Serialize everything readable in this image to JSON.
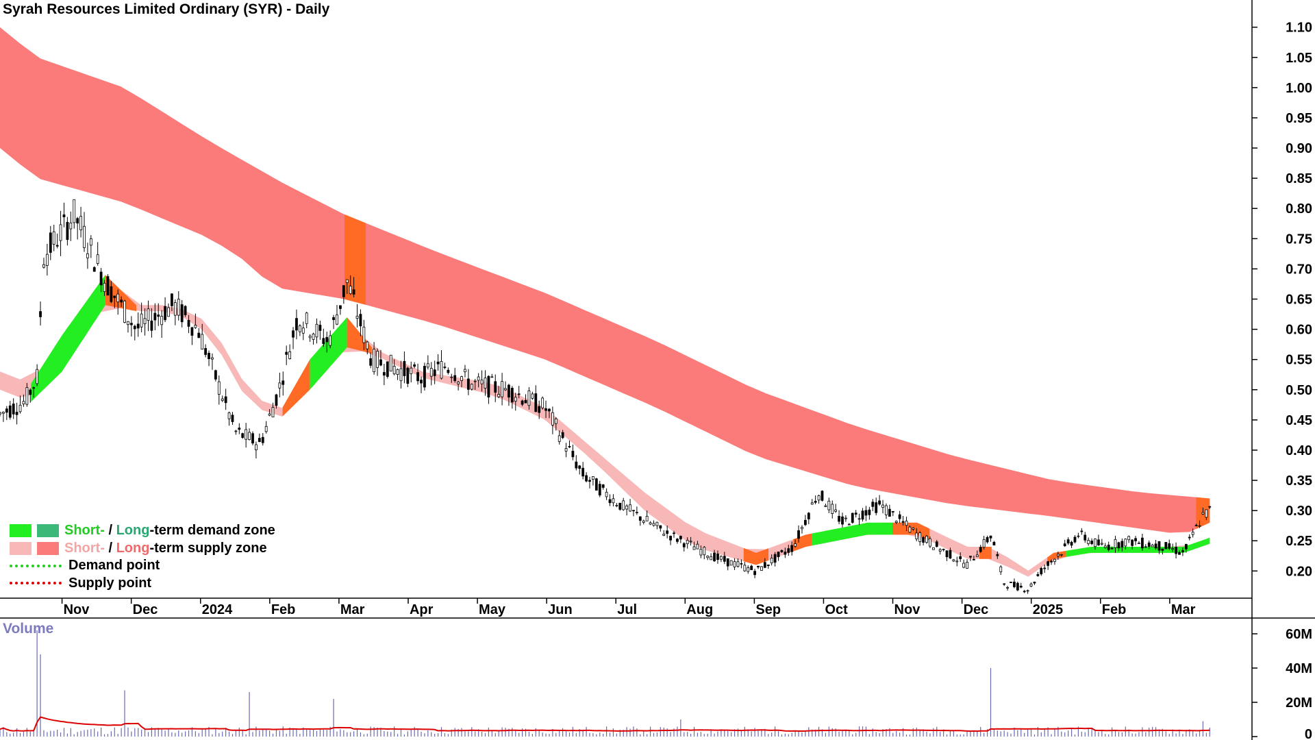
{
  "title": "Syrah Resources Limited Ordinary (SYR) - Daily",
  "volume_label": "Volume",
  "legend": {
    "demand_short": "Short-",
    "demand_sep": " / ",
    "demand_long": "Long",
    "demand_rest": "-term demand zone",
    "supply_short": "Short-",
    "supply_sep": " / ",
    "supply_long": "Long",
    "supply_rest": "-term supply zone",
    "demand_point": "Demand point",
    "supply_point": "Supply point"
  },
  "colors": {
    "short_demand": "#22ee22",
    "long_demand": "#3cb878",
    "short_supply": "#f9b8b8",
    "long_supply": "#fb7a7a",
    "zone_overlap": "#ff6a24",
    "demand_point": "#22cc22",
    "supply_point": "#dd0000",
    "volume_bar": "#6a6ab0",
    "volume_ma": "#dd0000"
  },
  "chart_data": {
    "type": "candlestick",
    "price_axis": {
      "ticks": [
        "1.10",
        "1.05",
        "1.00",
        "0.95",
        "0.90",
        "0.85",
        "0.80",
        "0.75",
        "0.70",
        "0.65",
        "0.60",
        "0.55",
        "0.50",
        "0.45",
        "0.40",
        "0.35",
        "0.30",
        "0.25",
        "0.20"
      ],
      "range": [
        0.155,
        1.145
      ]
    },
    "volume_axis": {
      "ticks": [
        "60M",
        "40M",
        "20M",
        "0"
      ],
      "range": [
        0,
        68
      ]
    },
    "x_labels": [
      "Nov",
      "Dec",
      "2024",
      "Feb",
      "Mar",
      "Apr",
      "May",
      "Jun",
      "Jul",
      "Aug",
      "Sep",
      "Oct",
      "Nov",
      "Dec",
      "2025",
      "Feb",
      "Mar"
    ],
    "period": [
      "2023-10",
      "2025-03"
    ],
    "price_path": [
      [
        0,
        0.46
      ],
      [
        0.02,
        0.48
      ],
      [
        0.03,
        0.52
      ],
      [
        0.035,
        0.72
      ],
      [
        0.06,
        0.79
      ],
      [
        0.085,
        0.68
      ],
      [
        0.11,
        0.6
      ],
      [
        0.14,
        0.64
      ],
      [
        0.16,
        0.6
      ],
      [
        0.19,
        0.43
      ],
      [
        0.21,
        0.41
      ],
      [
        0.225,
        0.5
      ],
      [
        0.24,
        0.62
      ],
      [
        0.265,
        0.58
      ],
      [
        0.28,
        0.68
      ],
      [
        0.3,
        0.55
      ],
      [
        0.34,
        0.52
      ],
      [
        0.36,
        0.54
      ],
      [
        0.38,
        0.51
      ],
      [
        0.41,
        0.5
      ],
      [
        0.44,
        0.47
      ],
      [
        0.47,
        0.36
      ],
      [
        0.5,
        0.31
      ],
      [
        0.54,
        0.26
      ],
      [
        0.58,
        0.22
      ],
      [
        0.61,
        0.2
      ],
      [
        0.64,
        0.24
      ],
      [
        0.66,
        0.33
      ],
      [
        0.68,
        0.28
      ],
      [
        0.71,
        0.31
      ],
      [
        0.74,
        0.26
      ],
      [
        0.78,
        0.21
      ],
      [
        0.8,
        0.26
      ],
      [
        0.81,
        0.18
      ],
      [
        0.83,
        0.17
      ],
      [
        0.84,
        0.2
      ],
      [
        0.87,
        0.26
      ],
      [
        0.89,
        0.24
      ],
      [
        0.91,
        0.25
      ],
      [
        0.94,
        0.24
      ],
      [
        0.955,
        0.23
      ],
      [
        0.97,
        0.29
      ],
      [
        0.976,
        0.3
      ]
    ],
    "series": [
      {
        "name": "Long-term zone",
        "role": "long",
        "upper": [
          [
            0,
            1.1
          ],
          [
            0.03,
            1.05
          ],
          [
            0.1,
            1.0
          ],
          [
            0.17,
            0.91
          ],
          [
            0.23,
            0.84
          ],
          [
            0.278,
            0.79
          ],
          [
            0.35,
            0.73
          ],
          [
            0.44,
            0.66
          ],
          [
            0.53,
            0.58
          ],
          [
            0.61,
            0.5
          ],
          [
            0.69,
            0.44
          ],
          [
            0.77,
            0.39
          ],
          [
            0.85,
            0.35
          ],
          [
            0.92,
            0.33
          ],
          [
            0.976,
            0.32
          ]
        ],
        "lower": [
          [
            0,
            0.9
          ],
          [
            0.03,
            0.85
          ],
          [
            0.1,
            0.81
          ],
          [
            0.17,
            0.75
          ],
          [
            0.2,
            0.71
          ],
          [
            0.22,
            0.67
          ],
          [
            0.278,
            0.65
          ],
          [
            0.35,
            0.61
          ],
          [
            0.44,
            0.55
          ],
          [
            0.53,
            0.47
          ],
          [
            0.61,
            0.39
          ],
          [
            0.69,
            0.34
          ],
          [
            0.77,
            0.31
          ],
          [
            0.85,
            0.29
          ],
          [
            0.92,
            0.27
          ],
          [
            0.955,
            0.26
          ],
          [
            0.976,
            0.28
          ]
        ]
      },
      {
        "name": "Short-term zone",
        "role": "short",
        "upper": [
          [
            0,
            0.53
          ],
          [
            0.025,
            0.51
          ],
          [
            0.05,
            0.59
          ],
          [
            0.085,
            0.69
          ],
          [
            0.11,
            0.64
          ],
          [
            0.14,
            0.64
          ],
          [
            0.17,
            0.61
          ],
          [
            0.2,
            0.5
          ],
          [
            0.225,
            0.46
          ],
          [
            0.25,
            0.55
          ],
          [
            0.28,
            0.62
          ],
          [
            0.3,
            0.57
          ],
          [
            0.34,
            0.53
          ],
          [
            0.4,
            0.51
          ],
          [
            0.44,
            0.47
          ],
          [
            0.48,
            0.4
          ],
          [
            0.52,
            0.33
          ],
          [
            0.56,
            0.27
          ],
          [
            0.61,
            0.23
          ],
          [
            0.65,
            0.26
          ],
          [
            0.7,
            0.28
          ],
          [
            0.74,
            0.28
          ],
          [
            0.78,
            0.24
          ],
          [
            0.8,
            0.24
          ],
          [
            0.83,
            0.2
          ],
          [
            0.85,
            0.23
          ],
          [
            0.88,
            0.24
          ],
          [
            0.92,
            0.24
          ],
          [
            0.955,
            0.24
          ],
          [
            0.976,
            0.255
          ]
        ],
        "lower": [
          [
            0,
            0.5
          ],
          [
            0.025,
            0.48
          ],
          [
            0.05,
            0.53
          ],
          [
            0.085,
            0.64
          ],
          [
            0.11,
            0.63
          ],
          [
            0.14,
            0.63
          ],
          [
            0.17,
            0.59
          ],
          [
            0.2,
            0.48
          ],
          [
            0.225,
            0.45
          ],
          [
            0.25,
            0.5
          ],
          [
            0.28,
            0.57
          ],
          [
            0.3,
            0.56
          ],
          [
            0.34,
            0.52
          ],
          [
            0.4,
            0.49
          ],
          [
            0.44,
            0.45
          ],
          [
            0.48,
            0.38
          ],
          [
            0.52,
            0.3
          ],
          [
            0.56,
            0.24
          ],
          [
            0.61,
            0.21
          ],
          [
            0.65,
            0.24
          ],
          [
            0.7,
            0.26
          ],
          [
            0.74,
            0.26
          ],
          [
            0.78,
            0.22
          ],
          [
            0.8,
            0.22
          ],
          [
            0.83,
            0.19
          ],
          [
            0.85,
            0.22
          ],
          [
            0.88,
            0.23
          ],
          [
            0.92,
            0.23
          ],
          [
            0.955,
            0.23
          ],
          [
            0.976,
            0.245
          ]
        ],
        "demand_ranges": [
          [
            0.025,
            0.085
          ],
          [
            0.25,
            0.28
          ],
          [
            0.655,
            0.72
          ],
          [
            0.86,
            0.976
          ]
        ],
        "overlap_ranges": [
          [
            0.085,
            0.11
          ],
          [
            0.228,
            0.25
          ],
          [
            0.28,
            0.3
          ],
          [
            0.6,
            0.62
          ],
          [
            0.64,
            0.655
          ],
          [
            0.72,
            0.75
          ],
          [
            0.79,
            0.8
          ],
          [
            0.845,
            0.86
          ]
        ]
      }
    ],
    "long_overlap_ranges": [
      [
        0.278,
        0.295
      ],
      [
        0.965,
        0.976
      ]
    ],
    "volume_spikes": [
      [
        0.03,
        62
      ],
      [
        0.033,
        48
      ],
      [
        0.1,
        27
      ],
      [
        0.2,
        26
      ],
      [
        0.27,
        22
      ],
      [
        0.55,
        10
      ],
      [
        0.8,
        40
      ],
      [
        0.97,
        9
      ]
    ],
    "volume_base": 3
  }
}
